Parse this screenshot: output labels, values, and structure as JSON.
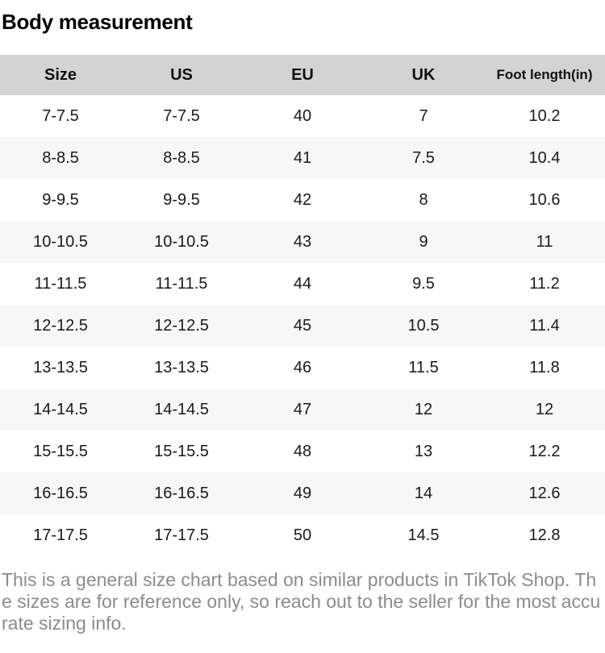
{
  "page": {
    "title": "Body measurement",
    "footer_note": "This is a general size chart based on similar products in TikTok Shop. The sizes are for reference only, so reach out to the seller for the most accurate sizing info."
  },
  "table": {
    "headers": [
      "Size",
      "US",
      "EU",
      "UK",
      "Foot length(in)"
    ],
    "rows": [
      [
        "7-7.5",
        "7-7.5",
        "40",
        "7",
        "10.2"
      ],
      [
        "8-8.5",
        "8-8.5",
        "41",
        "7.5",
        "10.4"
      ],
      [
        "9-9.5",
        "9-9.5",
        "42",
        "8",
        "10.6"
      ],
      [
        "10-10.5",
        "10-10.5",
        "43",
        "9",
        "11"
      ],
      [
        "11-11.5",
        "11-11.5",
        "44",
        "9.5",
        "11.2"
      ],
      [
        "12-12.5",
        "12-12.5",
        "45",
        "10.5",
        "11.4"
      ],
      [
        "13-13.5",
        "13-13.5",
        "46",
        "11.5",
        "11.8"
      ],
      [
        "14-14.5",
        "14-14.5",
        "47",
        "12",
        "12"
      ],
      [
        "15-15.5",
        "15-15.5",
        "48",
        "13",
        "12.2"
      ],
      [
        "16-16.5",
        "16-16.5",
        "49",
        "14",
        "12.6"
      ],
      [
        "17-17.5",
        "17-17.5",
        "50",
        "14.5",
        "12.8"
      ]
    ]
  },
  "colors": {
    "header_bg": "#d3d3d3",
    "row_alt_bg": "#f7f7f7",
    "footer_text": "#8c8c8c",
    "title_text": "#000000"
  }
}
